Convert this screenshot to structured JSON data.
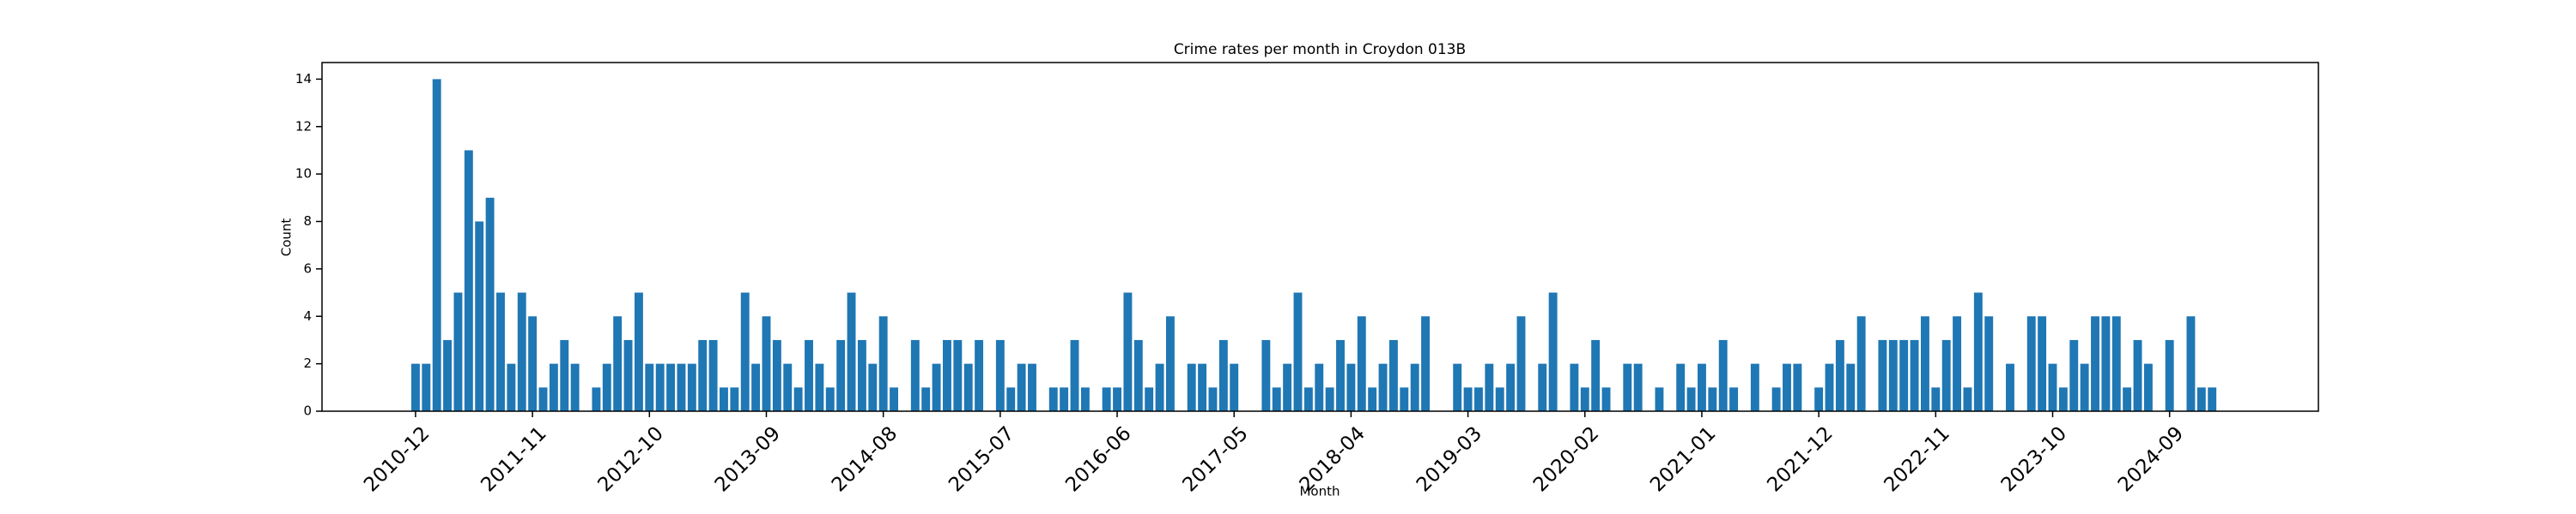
{
  "chart_data": {
    "type": "bar",
    "title": "Crime rates per month in Croydon 013B",
    "xlabel": "Month",
    "ylabel": "Count",
    "color": "#1f77b4",
    "categories": [
      "2010-12",
      null,
      null,
      null,
      null,
      null,
      null,
      null,
      null,
      null,
      null,
      "2011-11",
      null,
      null,
      null,
      null,
      null,
      null,
      null,
      null,
      null,
      null,
      "2012-10",
      null,
      null,
      null,
      null,
      null,
      null,
      null,
      null,
      null,
      null,
      "2013-09",
      null,
      null,
      null,
      null,
      null,
      null,
      null,
      null,
      null,
      null,
      "2014-08",
      null,
      null,
      null,
      null,
      null,
      null,
      null,
      null,
      null,
      null,
      "2015-07",
      null,
      null,
      null,
      null,
      null,
      null,
      null,
      null,
      null,
      null,
      "2016-06",
      null,
      null,
      null,
      null,
      null,
      null,
      null,
      null,
      null,
      null,
      "2017-05",
      null,
      null,
      null,
      null,
      null,
      null,
      null,
      null,
      null,
      null,
      "2018-04",
      null,
      null,
      null,
      null,
      null,
      null,
      null,
      null,
      null,
      null,
      "2019-03",
      null,
      null,
      null,
      null,
      null,
      null,
      null,
      null,
      null,
      null,
      "2020-02",
      null,
      null,
      null,
      null,
      null,
      null,
      null,
      null,
      null,
      null,
      "2021-01",
      null,
      null,
      null,
      null,
      null,
      null,
      null,
      null,
      null,
      null,
      "2021-12",
      null,
      null,
      null,
      null,
      null,
      null,
      null,
      null,
      null,
      null,
      "2022-11",
      null,
      null,
      null,
      null,
      null,
      null,
      null,
      null,
      null,
      null,
      "2023-10",
      null,
      null,
      null,
      null,
      null,
      null,
      null,
      null,
      null,
      null,
      "2024-09",
      null,
      null,
      null,
      null
    ],
    "values": [
      2,
      2,
      14,
      3,
      5,
      11,
      8,
      9,
      5,
      2,
      5,
      4,
      1,
      2,
      3,
      2,
      0,
      1,
      2,
      4,
      3,
      5,
      2,
      2,
      2,
      2,
      2,
      3,
      3,
      1,
      1,
      5,
      2,
      4,
      3,
      2,
      1,
      3,
      2,
      1,
      3,
      5,
      3,
      2,
      4,
      1,
      0,
      3,
      1,
      2,
      3,
      3,
      2,
      3,
      0,
      3,
      1,
      2,
      2,
      0,
      1,
      1,
      3,
      1,
      0,
      1,
      1,
      5,
      3,
      1,
      2,
      4,
      0,
      2,
      2,
      1,
      3,
      2,
      0,
      0,
      3,
      1,
      2,
      5,
      1,
      2,
      1,
      3,
      2,
      4,
      1,
      2,
      3,
      1,
      2,
      4,
      0,
      0,
      2,
      1,
      1,
      2,
      1,
      2,
      4,
      0,
      2,
      5,
      0,
      2,
      1,
      3,
      1,
      0,
      2,
      2,
      0,
      1,
      0,
      2,
      1,
      2,
      1,
      3,
      1,
      0,
      2,
      0,
      1,
      2,
      2,
      0,
      1,
      2,
      3,
      2,
      4,
      0,
      3,
      3,
      3,
      3,
      4,
      1,
      3,
      4,
      1,
      5,
      4,
      0,
      2,
      0,
      4,
      4,
      2,
      1,
      3,
      2,
      4,
      4,
      4,
      1,
      3,
      2,
      0,
      3,
      0,
      4,
      1,
      1
    ],
    "ylim": [
      0,
      14.7
    ],
    "yticks": [
      0,
      2,
      4,
      6,
      8,
      10,
      12,
      14
    ]
  }
}
